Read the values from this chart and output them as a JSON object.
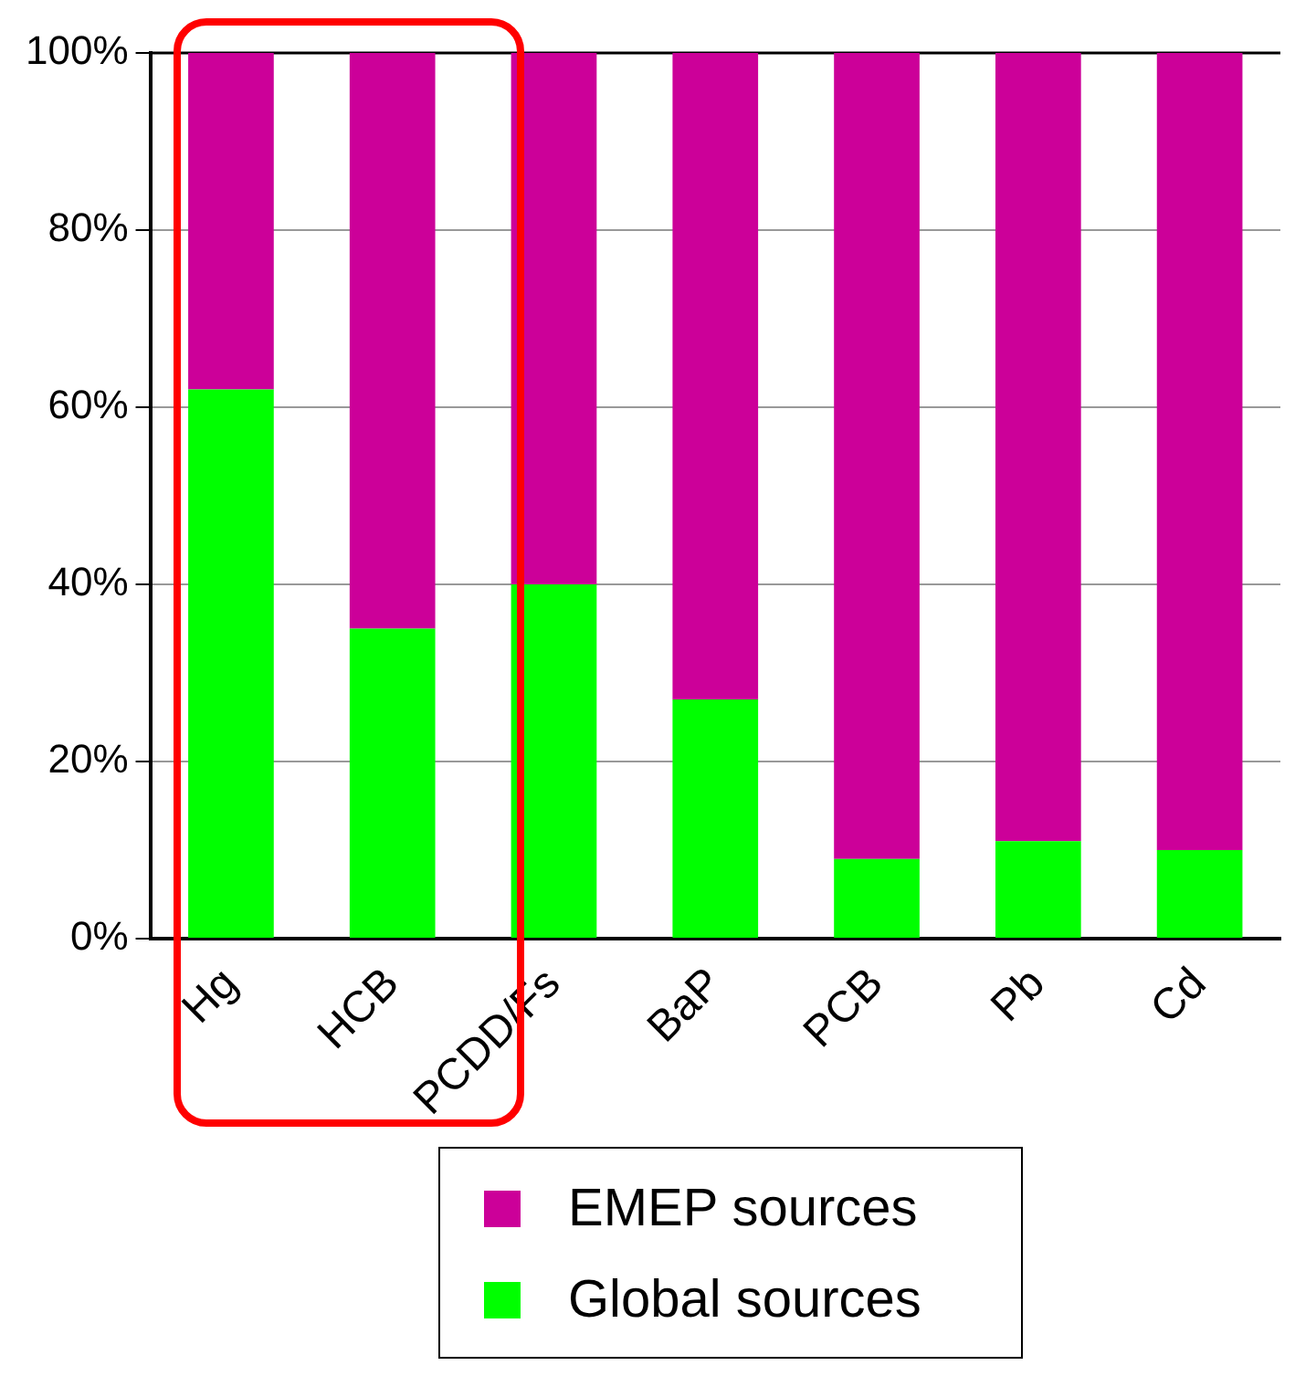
{
  "chart_data": {
    "type": "bar",
    "stacked": true,
    "categories": [
      "Hg",
      "HCB",
      "PCDD/Fs",
      "BaP",
      "PCB",
      "Pb",
      "Cd"
    ],
    "series": [
      {
        "name": "Global sources",
        "color": "#00ff00",
        "values": [
          62,
          35,
          40,
          27,
          9,
          11,
          10
        ]
      },
      {
        "name": "EMEP sources",
        "color": "#cc0099",
        "values": [
          38,
          65,
          60,
          73,
          91,
          89,
          90
        ]
      }
    ],
    "ylim": [
      0,
      100
    ],
    "yticks": [
      {
        "value": 0,
        "label": "0%"
      },
      {
        "value": 20,
        "label": "20%"
      },
      {
        "value": 40,
        "label": "40%"
      },
      {
        "value": 60,
        "label": "60%"
      },
      {
        "value": 80,
        "label": "80%"
      },
      {
        "value": 100,
        "label": "100%"
      }
    ],
    "grid": "y",
    "legend": "bottom"
  }
}
